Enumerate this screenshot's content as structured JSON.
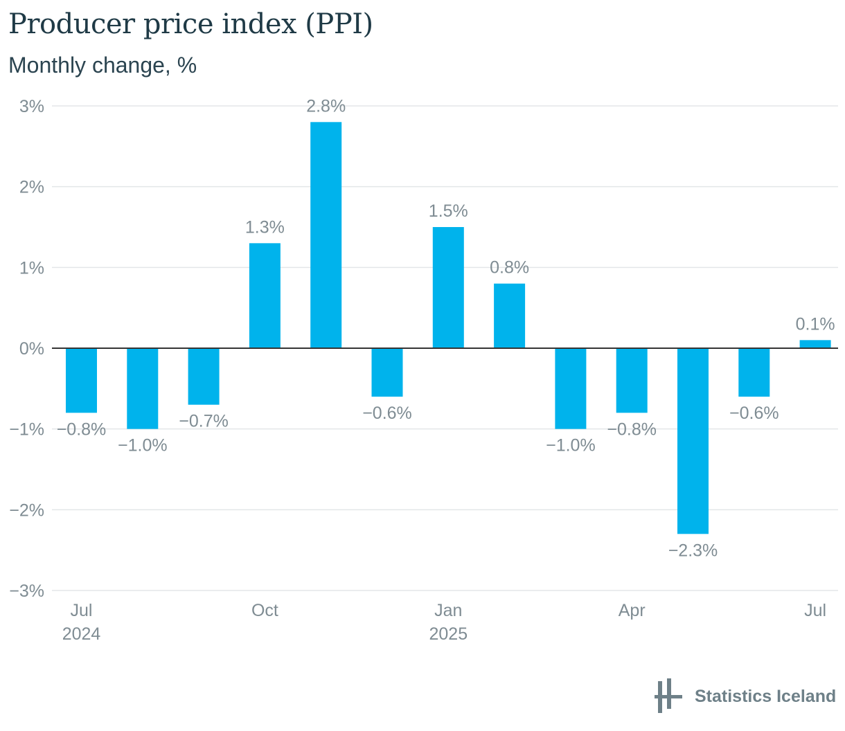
{
  "header": {
    "title": "Producer price index (PPI)",
    "subtitle": "Monthly change, %"
  },
  "brand": {
    "name": "Statistics Iceland",
    "logo_icon": "statistics-iceland-logo-icon"
  },
  "colors": {
    "bar": "#00b3ec",
    "grid": "#e3e6e8",
    "zero_line": "#333333",
    "tick_text": "#7f8c93",
    "label_text": "#7f8c93"
  },
  "chart_data": {
    "type": "bar",
    "title": "Producer price index (PPI)",
    "subtitle": "Monthly change, %",
    "categories": [
      "2024-07",
      "2024-08",
      "2024-09",
      "2024-10",
      "2024-11",
      "2024-12",
      "2025-01",
      "2025-02",
      "2025-03",
      "2025-04",
      "2025-05",
      "2025-06",
      "2025-07"
    ],
    "values": [
      -0.8,
      -1.0,
      -0.7,
      1.3,
      2.8,
      -0.6,
      1.5,
      0.8,
      -1.0,
      -0.8,
      -2.3,
      -0.6,
      0.1
    ],
    "data_labels": [
      "−0.8%",
      "−1.0%",
      "−0.7%",
      "1.3%",
      "2.8%",
      "−0.6%",
      "1.5%",
      "0.8%",
      "−1.0%",
      "−0.8%",
      "−2.3%",
      "−0.6%",
      "0.1%"
    ],
    "ylim": [
      -3,
      3
    ],
    "y_ticks": [
      3,
      2,
      1,
      0,
      -1,
      -2,
      -3
    ],
    "y_tick_labels": [
      "3%",
      "2%",
      "1%",
      "0%",
      "−1%",
      "−2%",
      "−3%"
    ],
    "x_ticks": [
      {
        "category_index": 0,
        "label": "Jul",
        "year": "2024"
      },
      {
        "category_index": 3,
        "label": "Oct",
        "year": ""
      },
      {
        "category_index": 6,
        "label": "Jan",
        "year": "2025"
      },
      {
        "category_index": 9,
        "label": "Apr",
        "year": ""
      },
      {
        "category_index": 12,
        "label": "Jul",
        "year": ""
      }
    ],
    "grid": true,
    "legend": "none",
    "xlabel": "",
    "ylabel": ""
  }
}
